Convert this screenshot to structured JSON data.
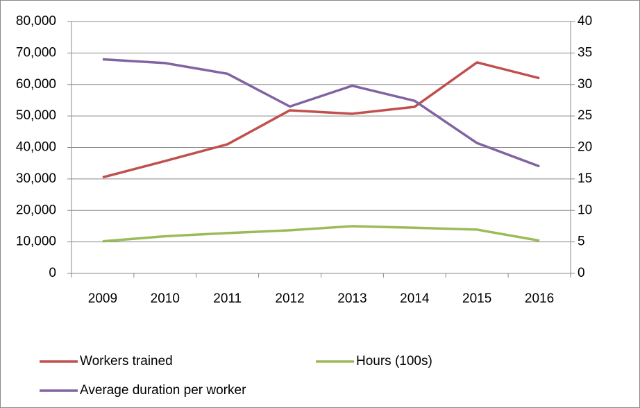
{
  "chart_data": {
    "type": "line",
    "categories": [
      "2009",
      "2010",
      "2011",
      "2012",
      "2013",
      "2014",
      "2015",
      "2016"
    ],
    "series": [
      {
        "name": "Workers trained",
        "color": "#c0504d",
        "values": [
          30500,
          35700,
          41000,
          51800,
          50700,
          52900,
          67000,
          62000
        ]
      },
      {
        "name": "Hours (100s)",
        "color": "#9bbb59",
        "values": [
          10200,
          11800,
          12800,
          13700,
          15000,
          14500,
          13900,
          10400
        ]
      },
      {
        "name": "Average duration per worker",
        "color": "#8064a2",
        "axis": "y2",
        "values": [
          34,
          33.4,
          31.7,
          26.5,
          29.8,
          27.4,
          20.7,
          17
        ]
      }
    ],
    "ylim": [
      0,
      80000
    ],
    "yticks": [
      0,
      {
        "value": 10000,
        "label": "10,000"
      },
      {
        "value": 20000,
        "label": "20,000"
      },
      {
        "value": 30000,
        "label": "30,000"
      },
      {
        "value": 40000,
        "label": "40,000"
      },
      {
        "value": 50000,
        "label": "50,000"
      },
      {
        "value": 60000,
        "label": "60,000"
      },
      {
        "value": 70000,
        "label": "70,000"
      },
      {
        "value": 80000,
        "label": "80,000"
      }
    ],
    "y2lim": [
      0,
      40
    ],
    "y2ticks": [
      0,
      5,
      10,
      15,
      20,
      25,
      30,
      35,
      40
    ],
    "grid": true,
    "legend": "bottom"
  }
}
